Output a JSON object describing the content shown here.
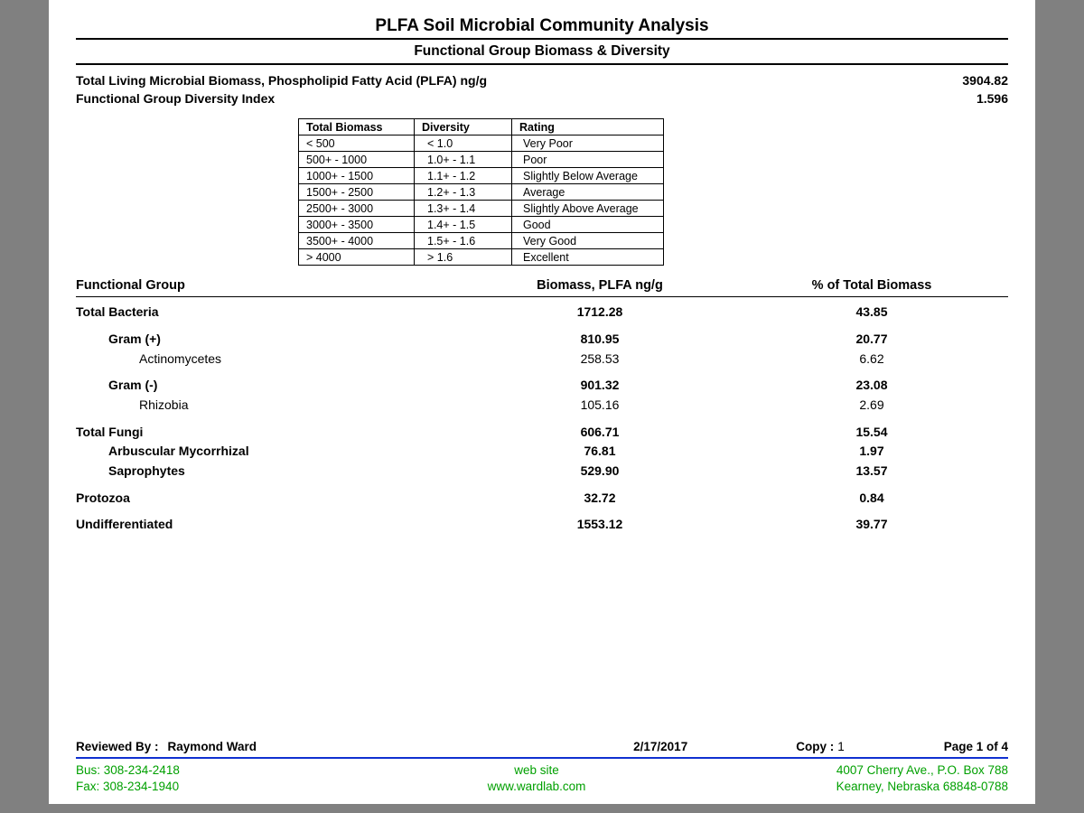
{
  "colors": {
    "page_bg": "#ffffff",
    "viewer_bg": "#808080",
    "text": "#000000",
    "rule": "#000000",
    "footer_rule": "#1030d0",
    "contact_text": "#00a000"
  },
  "typography": {
    "font_family": "Arial",
    "title_pt": 19,
    "subtitle_pt": 15.5,
    "body_pt": 13.5,
    "table_pt": 12.5
  },
  "header": {
    "title": "PLFA Soil Microbial Community Analysis",
    "subtitle": "Functional Group Biomass & Diversity"
  },
  "summary": {
    "biomass_label": "Total Living Microbial Biomass, Phospholipid Fatty Acid (PLFA) ng/g",
    "biomass_value": "3904.82",
    "diversity_label": "Functional Group Diversity Index",
    "diversity_value": "1.596"
  },
  "rating_table": {
    "type": "table",
    "columns": [
      "Total Biomass",
      "Diversity",
      "Rating"
    ],
    "rows": [
      [
        "< 500",
        "< 1.0",
        "Very Poor"
      ],
      [
        "500+   -   1000",
        "1.0+ - 1.1",
        "Poor"
      ],
      [
        "1000+  -   1500",
        "1.1+ - 1.2",
        "Slightly Below Average"
      ],
      [
        "1500+  -   2500",
        "1.2+ - 1.3",
        "Average"
      ],
      [
        "2500+  -   3000",
        "1.3+ - 1.4",
        "Slightly Above Average"
      ],
      [
        "3000+  -   3500",
        "1.4+ - 1.5",
        "Good"
      ],
      [
        "3500+  -   4000",
        "1.5+ - 1.6",
        "Very Good"
      ],
      [
        "> 4000",
        "> 1.6",
        "Excellent"
      ]
    ]
  },
  "fg_headers": {
    "name": "Functional Group",
    "biomass": "Biomass, PLFA ng/g",
    "pct": "% of Total Biomass"
  },
  "fg_rows": [
    {
      "name": "Total Bacteria",
      "biomass": "1712.28",
      "pct": "43.85",
      "indent": 0,
      "bold": true,
      "gap": false
    },
    {
      "name": "Gram (+)",
      "biomass": "810.95",
      "pct": "20.77",
      "indent": 1,
      "bold": true,
      "gap": true
    },
    {
      "name": "Actinomycetes",
      "biomass": "258.53",
      "pct": "6.62",
      "indent": 2,
      "bold": false,
      "gap": false
    },
    {
      "name": "Gram (-)",
      "biomass": "901.32",
      "pct": "23.08",
      "indent": 1,
      "bold": true,
      "gap": true
    },
    {
      "name": "Rhizobia",
      "biomass": "105.16",
      "pct": "2.69",
      "indent": 2,
      "bold": false,
      "gap": false
    },
    {
      "name": "Total Fungi",
      "biomass": "606.71",
      "pct": "15.54",
      "indent": 0,
      "bold": true,
      "gap": true
    },
    {
      "name": "Arbuscular Mycorrhizal",
      "biomass": "76.81",
      "pct": "1.97",
      "indent": 1,
      "bold": true,
      "gap": false
    },
    {
      "name": "Saprophytes",
      "biomass": "529.90",
      "pct": "13.57",
      "indent": 1,
      "bold": true,
      "gap": false
    },
    {
      "name": "Protozoa",
      "biomass": "32.72",
      "pct": "0.84",
      "indent": 0,
      "bold": true,
      "gap": true
    },
    {
      "name": "Undifferentiated",
      "biomass": "1553.12",
      "pct": "39.77",
      "indent": 0,
      "bold": true,
      "gap": true
    }
  ],
  "footer": {
    "reviewed_label": "Reviewed By :",
    "reviewed_by": "Raymond Ward",
    "date": "2/17/2017",
    "copy_label": "Copy :",
    "copy_value": "1",
    "page": "Page 1 of 4",
    "contact": {
      "bus": "Bus: 308-234-2418",
      "fax": "Fax: 308-234-1940",
      "web_label": "web site",
      "web_url": "www.wardlab.com",
      "addr1": "4007 Cherry Ave., P.O. Box 788",
      "addr2": "Kearney, Nebraska 68848-0788"
    }
  }
}
